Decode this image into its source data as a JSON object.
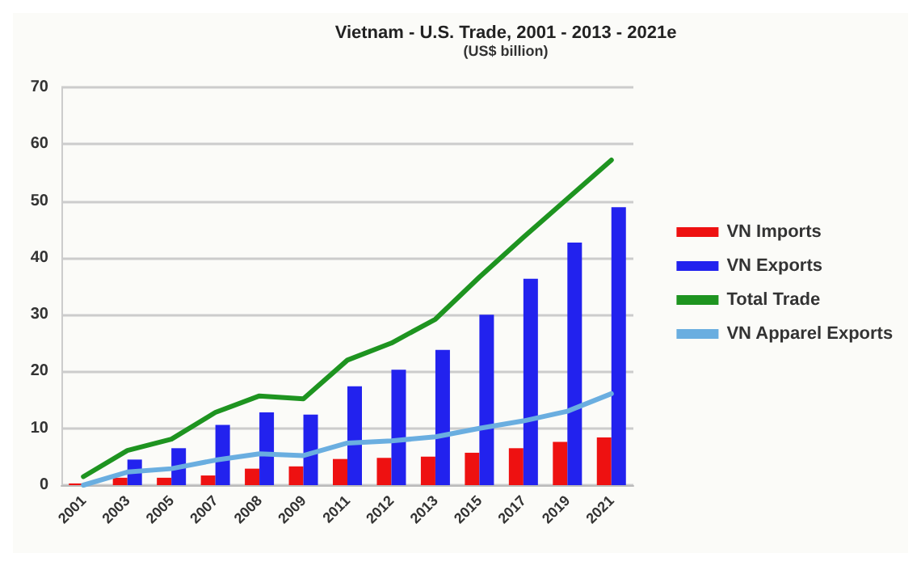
{
  "chart_data": {
    "type": "bar",
    "title": "Vietnam - U.S. Trade, 2001 - 2013 - 2021e",
    "subtitle": "(US$ billion)",
    "categories": [
      "2001",
      "2003",
      "2005",
      "2007",
      "2008",
      "2009",
      "2011",
      "2012",
      "2013",
      "2015",
      "2017",
      "2019",
      "2021"
    ],
    "series": [
      {
        "name": "VN Imports",
        "color": "#ee1111",
        "values": [
          0.3,
          1.3,
          1.3,
          1.7,
          2.9,
          3.3,
          4.6,
          4.8,
          5.0,
          5.7,
          6.5,
          7.6,
          8.4
        ]
      },
      {
        "name": "VN Exports",
        "color": "#2222ee",
        "values": [
          null,
          4.5,
          6.5,
          10.6,
          12.8,
          12.4,
          17.4,
          20.3,
          23.8,
          30.0,
          36.3,
          42.7,
          48.9
        ]
      },
      {
        "name": "Total Trade",
        "color": "#1e9420",
        "type": "line",
        "values": [
          1.5,
          6.1,
          8.1,
          12.8,
          15.7,
          15.2,
          22.0,
          25.0,
          29.2,
          36.6,
          43.6,
          50.4,
          57.2
        ]
      },
      {
        "name": "VN Apparel Exports",
        "color": "#6aaee0",
        "type": "line",
        "values": [
          0,
          2.3,
          2.9,
          4.4,
          5.5,
          5.2,
          7.4,
          7.8,
          8.5,
          10.0,
          11.3,
          13.0,
          16.1
        ]
      }
    ],
    "ylim": [
      0,
      70
    ],
    "yticks": [
      0,
      10,
      20,
      30,
      40,
      50,
      60,
      70
    ],
    "grid": "y",
    "legend": "right",
    "marker": "none",
    "line_style": "solid"
  }
}
